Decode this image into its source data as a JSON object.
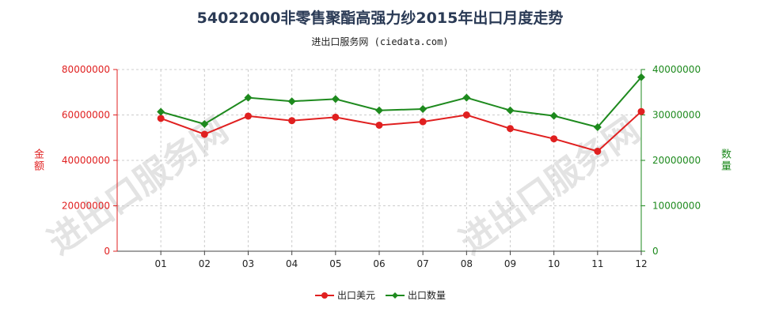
{
  "title": "54022000非零售聚酯高强力纱2015年出口月度走势",
  "subtitle": "进出口服务网 (ciedata.com)",
  "watermark": "进出口服务网",
  "colors": {
    "left_axis": "#e02020",
    "right_axis": "#1e8a1e",
    "grid": "#cccccc",
    "axis": "#444444"
  },
  "chart_data": {
    "type": "line",
    "categories": [
      "01",
      "02",
      "03",
      "04",
      "05",
      "06",
      "07",
      "08",
      "09",
      "10",
      "11",
      "12"
    ],
    "y_left": {
      "label": "金额",
      "min": 0,
      "max": 80000000,
      "ticks": [
        "0",
        "20000000",
        "40000000",
        "60000000",
        "80000000"
      ]
    },
    "y_right": {
      "label": "数量",
      "min": 0,
      "max": 40000000,
      "ticks": [
        "0",
        "10000000",
        "20000000",
        "30000000",
        "40000000"
      ]
    },
    "series": [
      {
        "name": "出口美元",
        "axis": "left",
        "color": "#e02020",
        "marker": "circle",
        "values": [
          58500000,
          51500000,
          59500000,
          57500000,
          59000000,
          55500000,
          57000000,
          60000000,
          54000000,
          49500000,
          44000000,
          61500000
        ]
      },
      {
        "name": "出口数量",
        "axis": "right",
        "color": "#1e8a1e",
        "marker": "diamond",
        "values": [
          30700000,
          28000000,
          33800000,
          33000000,
          33500000,
          31000000,
          31300000,
          33800000,
          31000000,
          29800000,
          27300000,
          38300000
        ]
      }
    ],
    "grid": true,
    "legend_position": "bottom"
  }
}
